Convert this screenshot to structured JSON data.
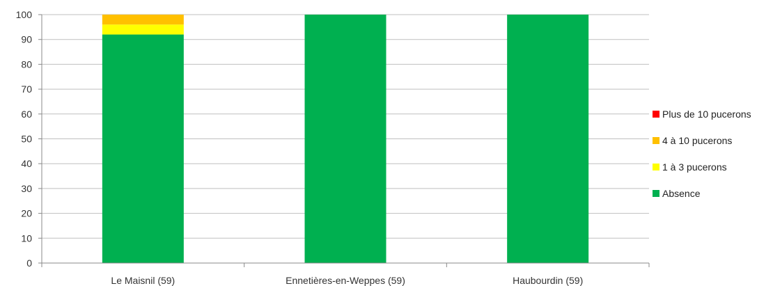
{
  "chart_data": {
    "type": "bar",
    "stacked": true,
    "title": "",
    "xlabel": "",
    "ylabel": "",
    "ylim": [
      0,
      100
    ],
    "yticks": [
      0,
      10,
      20,
      30,
      40,
      50,
      60,
      70,
      80,
      90,
      100
    ],
    "grid": true,
    "legend_position": "right",
    "categories": [
      "Le Maisnil (59)",
      "Ennetières-en-Weppes (59)",
      "Haubourdin (59)"
    ],
    "series": [
      {
        "name": "Absence",
        "color": "#00B050",
        "values": [
          92,
          100,
          100
        ]
      },
      {
        "name": "1 à 3 pucerons",
        "color": "#FFFF00",
        "values": [
          4,
          0,
          0
        ]
      },
      {
        "name": "4 à 10 pucerons",
        "color": "#FFC000",
        "values": [
          4,
          0,
          0
        ]
      },
      {
        "name": "Plus de 10 pucerons",
        "color": "#FF0000",
        "values": [
          0,
          0,
          0
        ]
      }
    ],
    "legend_order": [
      "Plus de 10 pucerons",
      "4 à 10 pucerons",
      "1 à 3 pucerons",
      "Absence"
    ]
  }
}
